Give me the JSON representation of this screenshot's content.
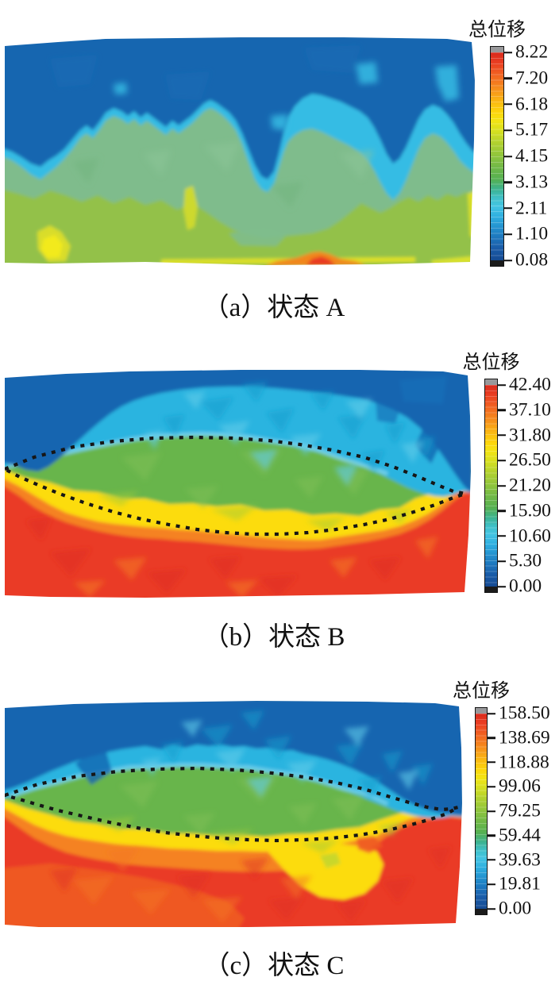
{
  "figure": {
    "panels": [
      {
        "id": "a",
        "caption": "（a）状态 A",
        "colorbar": {
          "title": "总位移",
          "ticks": [
            "8.22",
            "7.20",
            "6.18",
            "5.17",
            "4.15",
            "3.13",
            "2.11",
            "1.10",
            "0.08"
          ]
        }
      },
      {
        "id": "b",
        "caption": "（b）状态 B",
        "colorbar": {
          "title": "总位移",
          "ticks": [
            "42.40",
            "37.10",
            "31.80",
            "26.50",
            "21.20",
            "15.90",
            "10.60",
            "5.30",
            "0.00"
          ]
        }
      },
      {
        "id": "c",
        "caption": "（c）状态 C",
        "colorbar": {
          "title": "总位移",
          "ticks": [
            "158.50",
            "138.69",
            "118.88",
            "99.06",
            "79.25",
            "59.44",
            "39.63",
            "19.81",
            "0.00"
          ]
        }
      }
    ],
    "colorbar_gradient_stops": [
      [
        "#d92a1c",
        0
      ],
      [
        "#ea3e22",
        5
      ],
      [
        "#f26a21",
        12
      ],
      [
        "#f6921c",
        18
      ],
      [
        "#fbbb12",
        24
      ],
      [
        "#fdd70c",
        29
      ],
      [
        "#f2e414",
        33
      ],
      [
        "#d5df20",
        38
      ],
      [
        "#b4d22e",
        43
      ],
      [
        "#93c63b",
        49
      ],
      [
        "#72b947",
        55
      ],
      [
        "#55b051",
        61
      ],
      [
        "#3cb392",
        66
      ],
      [
        "#3fc0c8",
        70
      ],
      [
        "#44c4e2",
        74
      ],
      [
        "#2fafe0",
        79
      ],
      [
        "#2492cf",
        84
      ],
      [
        "#1d76bd",
        89
      ],
      [
        "#1a5ca8",
        94
      ],
      [
        "#154a92",
        100
      ]
    ],
    "cap_colors": {
      "over_max": "#98989a",
      "under_min": "#1b1b1b"
    }
  },
  "chart_data": [
    {
      "type": "heatmap",
      "subtype": "FEM total displacement contour",
      "panel": "(a)",
      "state": "状态A",
      "colorbar_title": "总位移",
      "colorbar_ticks": [
        8.22,
        7.2,
        6.18,
        5.17,
        4.15,
        3.13,
        2.11,
        1.1,
        0.08
      ],
      "value_range": [
        0.08,
        8.22
      ],
      "legend_position": "right",
      "annotations": [],
      "zones_top_to_bottom": [
        {
          "band": "top ~40%",
          "color": "deep blue",
          "value": "≈1–2"
        },
        {
          "band": "jagged transition",
          "color": "cyan",
          "value": "≈2–3"
        },
        {
          "band": "middle",
          "color": "sage green",
          "value": "≈4"
        },
        {
          "band": "lower ~25%",
          "color": "olive green with yellow patches",
          "value": "≈5–6"
        },
        {
          "band": "bottom-center edge spot",
          "color": "orange-red",
          "value": "≈7–8"
        }
      ]
    },
    {
      "type": "heatmap",
      "subtype": "FEM total displacement contour",
      "panel": "(b)",
      "state": "状态B",
      "colorbar_title": "总位移",
      "colorbar_ticks": [
        42.4,
        37.1,
        31.8,
        26.5,
        21.2,
        15.9,
        10.6,
        5.3,
        0.0
      ],
      "value_range": [
        0,
        42.4
      ],
      "legend_position": "right",
      "annotations": [
        "black dotted flattened ellipse enclosing the mid green band"
      ],
      "zones_top_to_bottom": [
        {
          "band": "top",
          "color": "blue with mottled cyan",
          "value": "≈0–11"
        },
        {
          "band": "middle band inside ellipse",
          "color": "green",
          "value": "≈16–27"
        },
        {
          "band": "below green",
          "color": "yellow",
          "value": "≈29–32"
        },
        {
          "band": "transition",
          "color": "orange",
          "value": "≈34–37"
        },
        {
          "band": "bottom ~35%",
          "color": "red",
          "value": "≈38–42"
        }
      ]
    },
    {
      "type": "heatmap",
      "subtype": "FEM total displacement contour",
      "panel": "(c)",
      "state": "状态C",
      "colorbar_title": "总位移",
      "colorbar_ticks": [
        158.5,
        138.69,
        118.88,
        99.06,
        79.25,
        59.44,
        39.63,
        19.81,
        0.0
      ],
      "value_range": [
        0,
        158.5
      ],
      "legend_position": "right",
      "annotations": [
        "black dotted flattened ellipse enclosing the mid green band"
      ],
      "zones_top_to_bottom": [
        {
          "band": "top",
          "color": "blue with mottled cyan",
          "value": "≈20–40"
        },
        {
          "band": "middle band inside ellipse",
          "color": "green",
          "value": "≈60–99"
        },
        {
          "band": "below green",
          "color": "yellow with large yellow patch bottom-centre-left",
          "value": "≈110–120"
        },
        {
          "band": "transition",
          "color": "orange",
          "value": "≈130–140"
        },
        {
          "band": "bottom ~30%",
          "color": "red",
          "value": "≈145–158"
        }
      ]
    }
  ]
}
